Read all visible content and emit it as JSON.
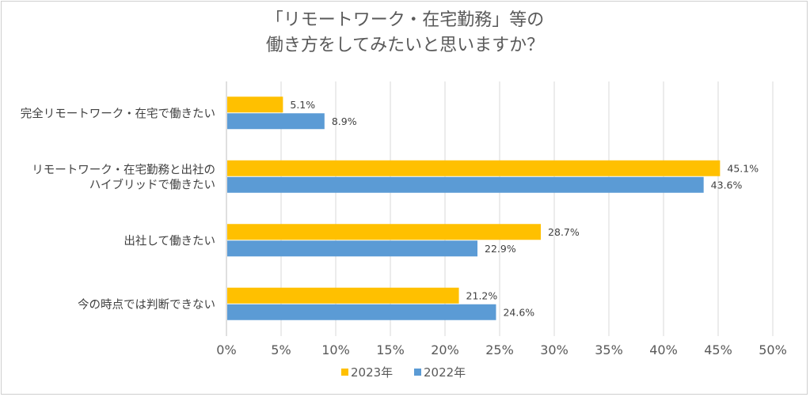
{
  "chart_data": {
    "type": "bar",
    "orientation": "horizontal",
    "title_lines": [
      "「リモートワーク・在宅勤務」等の",
      "働き方をしてみたいと思いますか？"
    ],
    "categories": [
      [
        "完全リモートワーク・在宅で働きたい"
      ],
      [
        "リモートワーク・在宅勤務と出社の",
        "ハイブリッドで働きたい"
      ],
      [
        "出社して働きたい"
      ],
      [
        "今の時点では判断できない"
      ]
    ],
    "series": [
      {
        "name": "2023年",
        "color": "#FFC000",
        "values": [
          5.1,
          45.1,
          28.7,
          21.2
        ],
        "labels": [
          "5.1%",
          "45.1%",
          "28.7%",
          "21.2%"
        ]
      },
      {
        "name": "2022年",
        "color": "#5B9BD5",
        "values": [
          8.9,
          43.6,
          22.9,
          24.6
        ],
        "labels": [
          "8.9%",
          "43.6%",
          "22.9%",
          "24.6%"
        ]
      }
    ],
    "xlim": [
      0,
      50
    ],
    "ticks": [
      "0%",
      "5%",
      "10%",
      "15%",
      "20%",
      "25%",
      "30%",
      "35%",
      "40%",
      "45%",
      "50%"
    ],
    "grid": true,
    "legend_position": "bottom"
  }
}
